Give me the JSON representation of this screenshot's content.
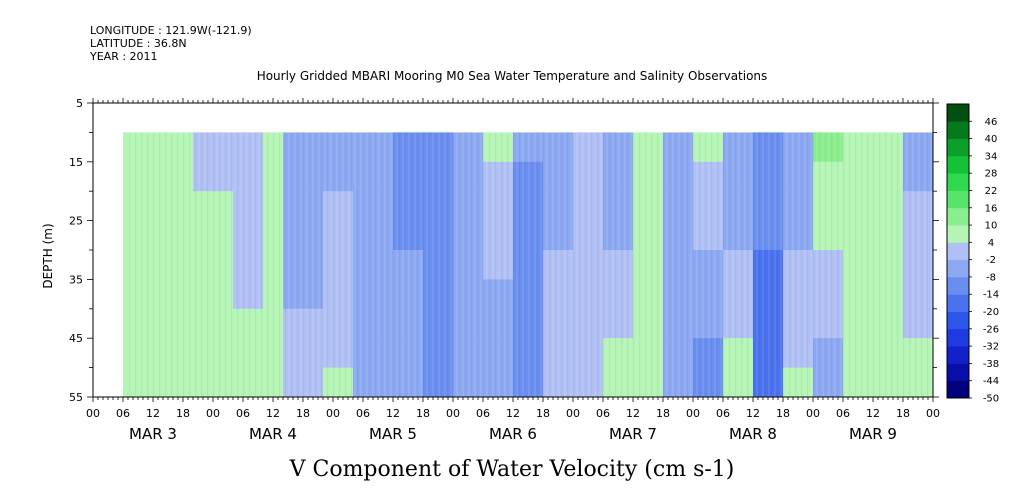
{
  "header": {
    "longitude": "LONGITUDE : 121.9W(-121.9)",
    "latitude": "LATITUDE : 36.8N",
    "year": "YEAR : 2011"
  },
  "chart_data": {
    "type": "heatmap",
    "title": "Hourly Gridded MBARI Mooring M0 Sea Water Temperature and Salinity Observations",
    "xlabel": "V Component of Water Velocity (cm s-1)",
    "ylabel": "DEPTH (m)",
    "ylim": [
      55,
      5
    ],
    "y_ticks": [
      "5",
      "15",
      "25",
      "35",
      "45",
      "55"
    ],
    "x_hour_ticks": [
      "00",
      "06",
      "12",
      "18",
      "00",
      "06",
      "12",
      "18",
      "00",
      "06",
      "12",
      "18",
      "00",
      "06",
      "12",
      "18",
      "00",
      "06",
      "12",
      "18",
      "00",
      "06",
      "12",
      "18",
      "00",
      "06",
      "12",
      "18",
      "00"
    ],
    "x_day_labels": [
      "MAR 3",
      "MAR 4",
      "MAR 5",
      "MAR 6",
      "MAR 7",
      "MAR 8",
      "MAR 9"
    ],
    "data_start_hour": 6,
    "data_depth_range": [
      10,
      55
    ],
    "colorbar": {
      "labels": [
        "46",
        "40",
        "34",
        "28",
        "22",
        "16",
        "10",
        "4",
        "-2",
        "-8",
        "-14",
        "-20",
        "-26",
        "-32",
        "-38",
        "-44",
        "-50"
      ],
      "boundaries": [
        -50,
        -44,
        -38,
        -32,
        -26,
        -20,
        -14,
        -8,
        -2,
        4,
        10,
        16,
        22,
        28,
        34,
        40,
        46,
        50
      ],
      "colors": [
        "#00007a",
        "#0a0ea8",
        "#1222c8",
        "#1e3ae0",
        "#2e55ea",
        "#4a72ee",
        "#6a8ef0",
        "#8ca8f2",
        "#b0c0f4",
        "#b4f4b4",
        "#8aee8e",
        "#5ae36a",
        "#2fd84c",
        "#14c238",
        "#0aa02a",
        "#047a1c",
        "#005012"
      ]
    },
    "columns": [
      {
        "day": 0,
        "h0": 6,
        "h1": 12,
        "top": 8,
        "bottom": 6
      },
      {
        "day": 0,
        "h0": 12,
        "h1": 20,
        "top": 8,
        "bottom": 8
      },
      {
        "day": 0,
        "h0": 20,
        "h1": 28,
        "top": 3,
        "bottom": 7
      },
      {
        "day": 1,
        "h0": 4,
        "h1": 10,
        "top": -2,
        "bottom": 6
      },
      {
        "day": 1,
        "h0": 10,
        "h1": 14,
        "top": 5,
        "bottom": 4
      },
      {
        "day": 1,
        "h0": 14,
        "h1": 22,
        "top": -6,
        "bottom": 0
      },
      {
        "day": 1,
        "h0": 22,
        "h1": 28,
        "top": -4,
        "bottom": 4
      },
      {
        "day": 2,
        "h0": 4,
        "h1": 12,
        "top": -4,
        "bottom": -4
      },
      {
        "day": 2,
        "h0": 12,
        "h1": 18,
        "top": -9,
        "bottom": -7
      },
      {
        "day": 2,
        "h0": 18,
        "h1": 24,
        "top": -14,
        "bottom": -10
      },
      {
        "day": 3,
        "h0": 0,
        "h1": 6,
        "top": -6,
        "bottom": -4
      },
      {
        "day": 3,
        "h0": 6,
        "h1": 12,
        "top": 4,
        "bottom": -8
      },
      {
        "day": 3,
        "h0": 12,
        "h1": 18,
        "top": -8,
        "bottom": -10
      },
      {
        "day": 3,
        "h0": 18,
        "h1": 24,
        "top": -6,
        "bottom": 3
      },
      {
        "day": 4,
        "h0": 0,
        "h1": 6,
        "top": 3,
        "bottom": 3
      },
      {
        "day": 4,
        "h0": 6,
        "h1": 12,
        "top": -8,
        "bottom": 6
      },
      {
        "day": 4,
        "h0": 12,
        "h1": 18,
        "top": 8,
        "bottom": 6
      },
      {
        "day": 4,
        "h0": 18,
        "h1": 24,
        "top": -4,
        "bottom": -6
      },
      {
        "day": 5,
        "h0": 0,
        "h1": 6,
        "top": 4,
        "bottom": -10
      },
      {
        "day": 5,
        "h0": 6,
        "h1": 12,
        "top": -8,
        "bottom": 6
      },
      {
        "day": 5,
        "h0": 12,
        "h1": 18,
        "top": -10,
        "bottom": -20
      },
      {
        "day": 5,
        "h0": 18,
        "h1": 24,
        "top": -6,
        "bottom": 4
      },
      {
        "day": 6,
        "h0": 0,
        "h1": 6,
        "top": 10,
        "bottom": -4
      },
      {
        "day": 6,
        "h0": 6,
        "h1": 12,
        "top": 8,
        "bottom": 6
      },
      {
        "day": 6,
        "h0": 12,
        "h1": 18,
        "top": 6,
        "bottom": 5
      },
      {
        "day": 6,
        "h0": 18,
        "h1": 24,
        "top": -4,
        "bottom": 6
      }
    ]
  }
}
